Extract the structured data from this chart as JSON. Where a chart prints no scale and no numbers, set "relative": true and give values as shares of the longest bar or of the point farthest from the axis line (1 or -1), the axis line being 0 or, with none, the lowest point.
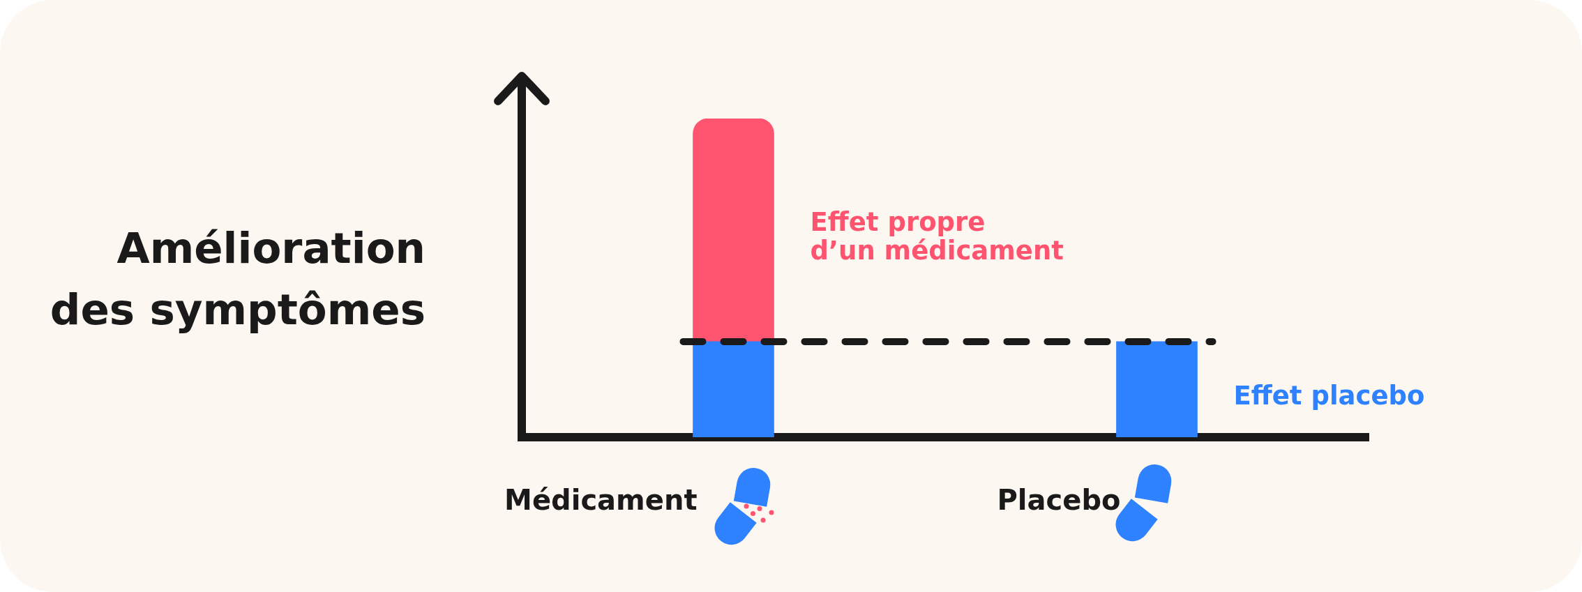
{
  "chart_data": {
    "type": "bar",
    "ylabel": "Amélioration des symptômes",
    "categories": [
      "Médicament",
      "Placebo"
    ],
    "stacked": true,
    "relative": true,
    "series": [
      {
        "name": "Effet placebo",
        "color": "#2e82ff",
        "values": [
          0.3,
          0.3
        ]
      },
      {
        "name": "Effet propre d’un médicament",
        "color": "#ff5470",
        "values": [
          0.7,
          null
        ]
      }
    ],
    "ref_lines": [
      {
        "axis": "y",
        "value": 0.3,
        "color": "#1a1a1a",
        "line_style": "dashed"
      }
    ]
  }
}
